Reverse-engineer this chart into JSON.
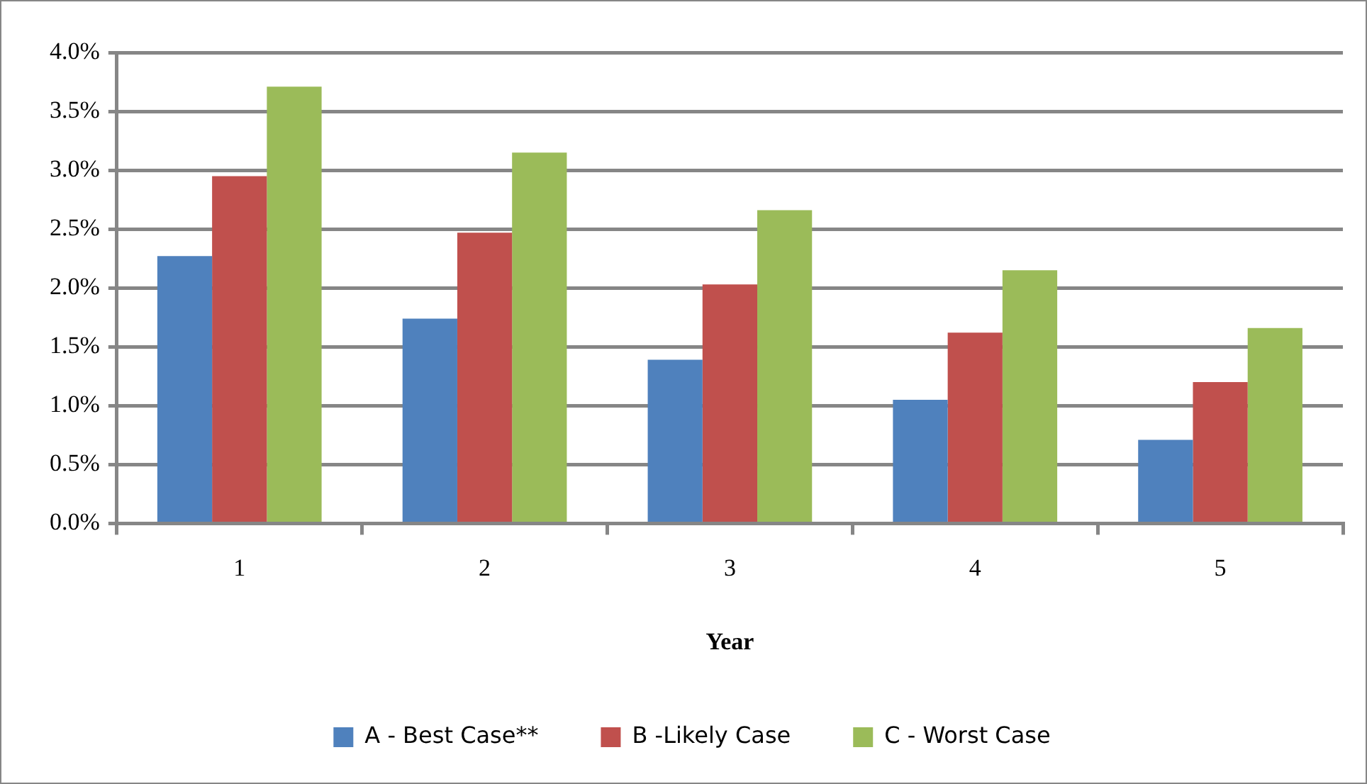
{
  "chart_data": {
    "type": "bar",
    "xlabel": "Year",
    "categories": [
      "1",
      "2",
      "3",
      "4",
      "5"
    ],
    "series": [
      {
        "name": "A - Best Case**",
        "color": "#4f81bd",
        "values": [
          2.27,
          1.74,
          1.39,
          1.05,
          0.71
        ]
      },
      {
        "name": "B -Likely Case",
        "color": "#c0504d",
        "values": [
          2.95,
          2.47,
          2.03,
          1.62,
          1.2
        ]
      },
      {
        "name": "C - Worst Case",
        "color": "#9bbb59",
        "values": [
          3.71,
          3.15,
          2.66,
          2.15,
          1.66
        ]
      }
    ],
    "ylim": [
      0,
      4
    ],
    "yticks": [
      {
        "value": 0,
        "label": "0.0%"
      },
      {
        "value": 0.5,
        "label": "0.5%"
      },
      {
        "value": 1,
        "label": "1.0%"
      },
      {
        "value": 1.5,
        "label": "1.5%"
      },
      {
        "value": 2,
        "label": "2.0%"
      },
      {
        "value": 2.5,
        "label": "2.5%"
      },
      {
        "value": 3,
        "label": "3.0%"
      },
      {
        "value": 3.5,
        "label": "3.5%"
      },
      {
        "value": 4,
        "label": "4.0%"
      }
    ],
    "grid": "y",
    "legend": "bottom"
  }
}
